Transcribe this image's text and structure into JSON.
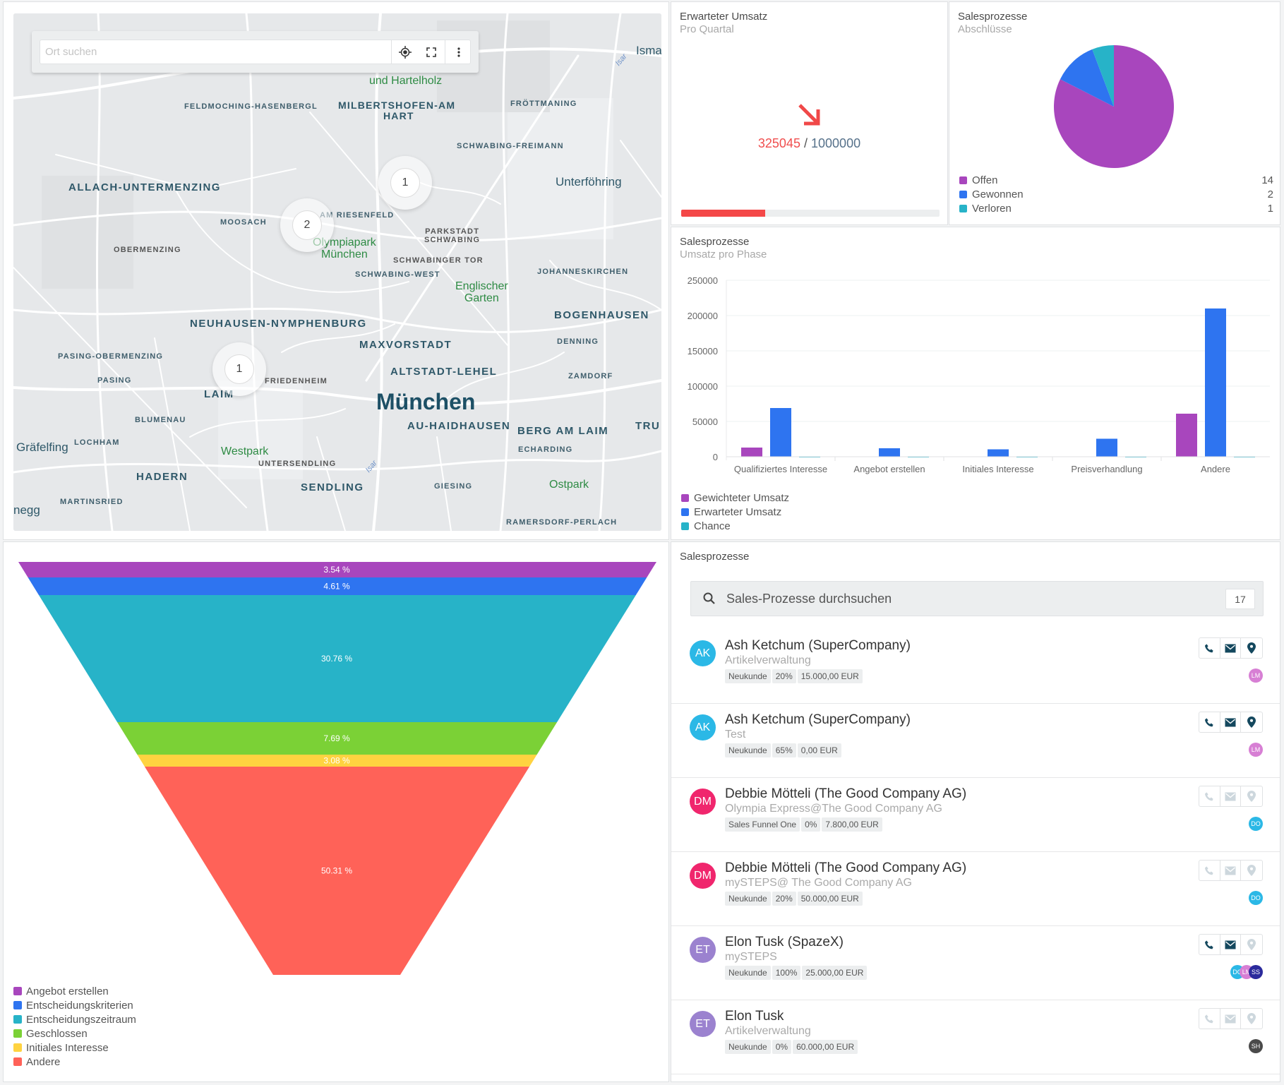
{
  "map": {
    "search_placeholder": "Ort suchen",
    "locate_icon": "crosshair-icon",
    "fullscreen_icon": "fullscreen-icon",
    "menu_icon": "more-vertical-icon",
    "labels": {
      "isma": "Isma",
      "hartelholz": "und Hartelholz",
      "feldmoching": "FELDMOCHING-HASENBERGL",
      "milbertshofen1": "MILBERTSHOFEN-AM",
      "milbertshofen2": "HART",
      "froettmaning": "FRÖTTMANING",
      "schwabing_freimann": "SCHWABING-FREIMANN",
      "allach": "ALLACH-UNTERMENZING",
      "unterfoehring": "Unterföhring",
      "moosach": "MOOSACH",
      "riesenfeld": "AM RIESENFELD",
      "parkstadt1": "PARKSTADT",
      "parkstadt2": "SCHWABING",
      "obermenzing": "OBERMENZING",
      "olympiapark": "Olympiapark\nMünchen",
      "schwabinger_tor": "SCHWABINGER TOR",
      "schwabing_west": "SCHWABING-WEST",
      "johanneskirchen": "JOHANNESKIRCHEN",
      "englischer": "Englischer\nGarten",
      "bogenhausen": "BOGENHAUSEN",
      "neuhausen": "NEUHAUSEN-NYMPHENBURG",
      "maxvorstadt": "MAXVORSTADT",
      "denning": "DENNING",
      "pasing_ober": "PASING-OBERMENZING",
      "altstadt": "ALTSTADT-LEHEL",
      "zamdorf": "ZAMDORF",
      "pasing": "PASING",
      "friedenheim": "FRIEDENHEIM",
      "laim": "LAIM",
      "muenchen": "München",
      "blumenau": "BLUMENAU",
      "au_haidhausen": "AU-HAIDHAUSEN",
      "berg_am_laim": "BERG AM LAIM",
      "trudering": "TRU",
      "graefelfing": "Gräfelfing",
      "lochham": "LOCHHAM",
      "westpark": "Westpark",
      "echarding": "ECHARDING",
      "untersendling": "UNTERSENDLING",
      "hadern": "HADERN",
      "sendling": "SENDLING",
      "giesing": "GIESING",
      "ostpark": "Ostpark",
      "martinsried": "MARTINSRIED",
      "negg": "negg",
      "ramersdorf": "RAMERSDORF-PERLACH",
      "isar1": "Isar",
      "isar2": "Isar"
    },
    "clusters": [
      {
        "count": "1"
      },
      {
        "count": "2"
      },
      {
        "count": "1"
      }
    ]
  },
  "kpi": {
    "title": "Erwarteter Umsatz",
    "subtitle": "Pro Quartal",
    "trend_icon": "arrow-down-right-icon",
    "current": "325045",
    "separator": "/",
    "target": "1000000",
    "progress": 0.325,
    "colors": {
      "current": "#f04e4e",
      "target": "#56718a",
      "bar": "#f44848"
    }
  },
  "pie": {
    "title": "Salesprozesse",
    "subtitle": "Abschlüsse",
    "legend": [
      {
        "label": "Offen",
        "count": "14",
        "color": "#a846bd"
      },
      {
        "label": "Gewonnen",
        "count": "2",
        "color": "#2e74f0"
      },
      {
        "label": "Verloren",
        "count": "1",
        "color": "#27b3c8"
      }
    ]
  },
  "chart_data": [
    {
      "type": "pie",
      "title": "Salesprozesse",
      "subtitle": "Abschlüsse",
      "labels": [
        "Offen",
        "Gewonnen",
        "Verloren"
      ],
      "values": [
        14,
        2,
        1
      ]
    },
    {
      "type": "bar",
      "title": "Salesprozesse",
      "subtitle": "Umsatz pro Phase",
      "categories": [
        "Qualifiziertes Interesse",
        "Angebot erstellen",
        "Initiales Interesse",
        "Preisverhandlung",
        "Andere"
      ],
      "series": [
        {
          "name": "Gewichteter Umsatz",
          "color": "#a846bd",
          "values": [
            13000,
            0,
            0,
            0,
            61000
          ]
        },
        {
          "name": "Erwarteter Umsatz",
          "color": "#2e74f0",
          "values": [
            69000,
            12000,
            10500,
            25500,
            210000
          ]
        },
        {
          "name": "Chance",
          "color": "#27b3c8",
          "values": [
            500,
            500,
            500,
            500,
            500
          ]
        }
      ],
      "yticks": [
        "0",
        "50000",
        "100000",
        "150000",
        "200000",
        "250000"
      ],
      "ylim": [
        0,
        250000
      ],
      "grid": true,
      "legend": "bottom-left"
    },
    {
      "type": "funnel",
      "segments": [
        {
          "label": "Angebot erstellen",
          "percent": "3.54 %",
          "value": 3.54,
          "color": "#a846bd"
        },
        {
          "label": "Entscheidungskriterien",
          "percent": "4.61 %",
          "value": 4.61,
          "color": "#2e74f0"
        },
        {
          "label": "Entscheidungszeitraum",
          "percent": "30.76 %",
          "value": 30.76,
          "color": "#27b3c8"
        },
        {
          "label": "Geschlossen",
          "percent": "7.69 %",
          "value": 7.69,
          "color": "#7bd136"
        },
        {
          "label": "Initiales Interesse",
          "percent": "3.08 %",
          "value": 3.08,
          "color": "#ffd340"
        },
        {
          "label": "Andere",
          "percent": "50.31 %",
          "value": 50.31,
          "color": "#ff6258"
        }
      ],
      "legend": "bottom-left"
    }
  ],
  "bar": {
    "title": "Salesprozesse",
    "subtitle": "Umsatz pro Phase"
  },
  "list": {
    "title": "Salesprozesse",
    "search_placeholder": "Sales-Prozesse durchsuchen",
    "count": "17",
    "items": [
      {
        "initials": "AK",
        "avatar_color": "#2bb8e6",
        "name": "Ash Ketchum (SuperCompany)",
        "sub": "Artikelverwaltung",
        "tags": [
          "Neukunde",
          "20%",
          "15.000,00 EUR"
        ],
        "phone": true,
        "mail": true,
        "location": true,
        "owners": [
          {
            "initials": "LM",
            "color": "#d77fd4"
          }
        ]
      },
      {
        "initials": "AK",
        "avatar_color": "#2bb8e6",
        "name": "Ash Ketchum (SuperCompany)",
        "sub": "Test",
        "tags": [
          "Neukunde",
          "65%",
          "0,00 EUR"
        ],
        "phone": true,
        "mail": true,
        "location": true,
        "owners": [
          {
            "initials": "LM",
            "color": "#d77fd4"
          }
        ]
      },
      {
        "initials": "DM",
        "avatar_color": "#f0266d",
        "name": "Debbie Mötteli (The Good Company AG)",
        "sub": "Olympia Express@The Good Company AG",
        "tags": [
          "Sales Funnel One",
          "0%",
          "7.800,00 EUR"
        ],
        "phone": false,
        "mail": false,
        "location": false,
        "owners": [
          {
            "initials": "DO",
            "color": "#2bb8e6"
          }
        ]
      },
      {
        "initials": "DM",
        "avatar_color": "#f0266d",
        "name": "Debbie Mötteli (The Good Company AG)",
        "sub": "mySTEPS@ The Good Company AG",
        "tags": [
          "Neukunde",
          "20%",
          "50.000,00 EUR"
        ],
        "phone": false,
        "mail": false,
        "location": false,
        "owners": [
          {
            "initials": "DO",
            "color": "#2bb8e6"
          }
        ]
      },
      {
        "initials": "ET",
        "avatar_color": "#9b82cf",
        "name": "Elon Tusk (SpazeX)",
        "sub": "mySTEPS",
        "tags": [
          "Neukunde",
          "100%",
          "25.000,00 EUR"
        ],
        "phone": true,
        "mail": true,
        "location": false,
        "owners": [
          {
            "initials": "DO",
            "color": "#2bb8e6"
          },
          {
            "initials": "LM",
            "color": "#d77fd4"
          },
          {
            "initials": "SS",
            "color": "#2b2a9c"
          }
        ]
      },
      {
        "initials": "ET",
        "avatar_color": "#9b82cf",
        "name": "Elon Tusk",
        "sub": "Artikelverwaltung",
        "tags": [
          "Neukunde",
          "0%",
          "60.000,00 EUR"
        ],
        "phone": false,
        "mail": false,
        "location": false,
        "owners": [
          {
            "initials": "SH",
            "color": "#4a4a4a"
          }
        ]
      }
    ]
  }
}
